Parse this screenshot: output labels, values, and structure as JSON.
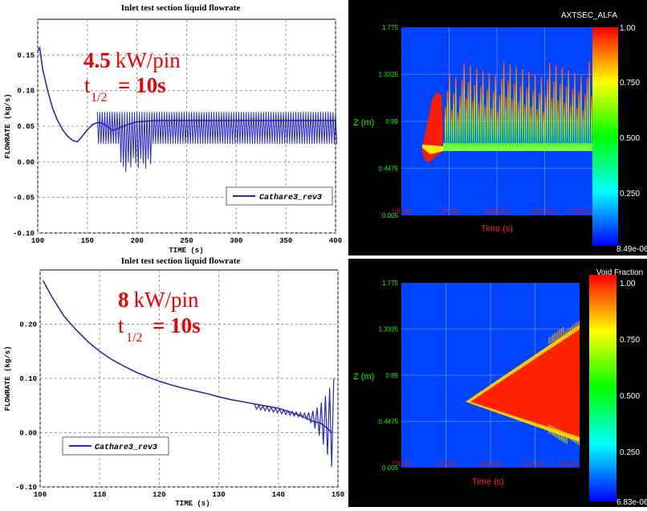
{
  "chart_data": [
    {
      "type": "line",
      "title": "Inlet test section liquid flowrate",
      "xlabel": "TIME (s)",
      "ylabel": "FLOWRATE (kg/s)",
      "xlim": [
        100,
        400
      ],
      "ylim": [
        -0.1,
        0.2
      ],
      "xticks": [
        "100",
        "150",
        "200",
        "250",
        "300",
        "350",
        "400"
      ],
      "yticks": [
        "-0.10",
        "-0.05",
        "0.00",
        "0.05",
        "0.10",
        "0.15"
      ],
      "grid": true,
      "legend": "bottom-right",
      "annotation": {
        "power_value": "4.5",
        "power_unit": "kW/pin",
        "t_sub": "1/2",
        "t_value": "= 10s"
      },
      "series": [
        {
          "name": "Cathare3_rev3",
          "color": "#2a2ab8",
          "x": [
            100,
            102,
            105,
            110,
            115,
            120,
            125,
            130,
            135,
            140,
            145,
            150,
            155,
            160,
            165,
            170,
            175,
            180,
            185,
            190,
            195,
            200,
            210,
            220,
            240,
            260,
            280,
            300,
            320,
            340,
            360,
            380,
            400
          ],
          "y": [
            0.155,
            0.16,
            0.13,
            0.1,
            0.075,
            0.058,
            0.045,
            0.036,
            0.03,
            0.028,
            0.036,
            0.045,
            0.052,
            0.055,
            0.054,
            0.05,
            0.044,
            0.046,
            0.049,
            0.052,
            0.054,
            0.056,
            0.057,
            0.058,
            0.058,
            0.058,
            0.058,
            0.058,
            0.058,
            0.058,
            0.058,
            0.058,
            0.058
          ],
          "osc_start": 160,
          "osc_high": 0.07,
          "osc_low": 0.025
        }
      ]
    },
    {
      "type": "line",
      "title": "Inlet test section liquid flowrate",
      "xlabel": "TIME (s)",
      "ylabel": "FLOWRATE (kg/s)",
      "xlim": [
        100,
        150
      ],
      "ylim": [
        -0.1,
        0.3
      ],
      "xticks": [
        "100",
        "110",
        "120",
        "130",
        "140",
        "150"
      ],
      "yticks": [
        "-0.10",
        "0.00",
        "0.10",
        "0.20"
      ],
      "grid": true,
      "legend": "bottom-left",
      "annotation": {
        "power_value": "8",
        "power_unit": "kW/pin",
        "t_sub": "1/2",
        "t_value": "= 10s"
      },
      "series": [
        {
          "name": "Cathare3_rev3",
          "color": "#2a2ab8",
          "x": [
            100.5,
            102,
            104,
            106,
            108,
            110,
            112,
            114,
            116,
            118,
            120,
            122,
            124,
            126,
            128,
            130,
            132,
            134,
            136,
            138,
            140,
            142,
            144,
            145,
            146,
            147,
            148,
            149
          ],
          "y": [
            0.28,
            0.25,
            0.215,
            0.19,
            0.168,
            0.15,
            0.135,
            0.123,
            0.112,
            0.103,
            0.095,
            0.088,
            0.082,
            0.077,
            0.072,
            0.066,
            0.061,
            0.057,
            0.053,
            0.049,
            0.045,
            0.038,
            0.03,
            0.025,
            0.02,
            0.018,
            0.01,
            0.0
          ]
        }
      ]
    },
    {
      "type": "heatmap",
      "title": "AXTSEC_ALFA",
      "xlabel": "Time (s)",
      "ylabel": "Z (m)",
      "xticks": [
        "100.65",
        "175.49",
        "250.331",
        "325.171",
        "400.01"
      ],
      "yticks": [
        "0.005",
        "0.4475",
        "0.89",
        "1.3325",
        "1.775"
      ],
      "colorbar": {
        "max_label": "1.00",
        "labels": [
          "0.750",
          "0.500",
          "0.250"
        ],
        "min_label": "8.49e-06"
      }
    },
    {
      "type": "heatmap",
      "title": "Void Fraction",
      "xlabel": "Time (s)",
      "ylabel": "Z (m)",
      "xticks": [
        "120.66",
        "127.82",
        "134.991",
        "142.161",
        "149.33"
      ],
      "yticks": [
        "0.005",
        "0.4475",
        "0.89",
        "1.3325",
        "1.775"
      ],
      "colorbar": {
        "max_label": "1.00",
        "labels": [
          "0.750",
          "0.500",
          "0.250"
        ],
        "min_label": "6.83e-06"
      }
    }
  ]
}
